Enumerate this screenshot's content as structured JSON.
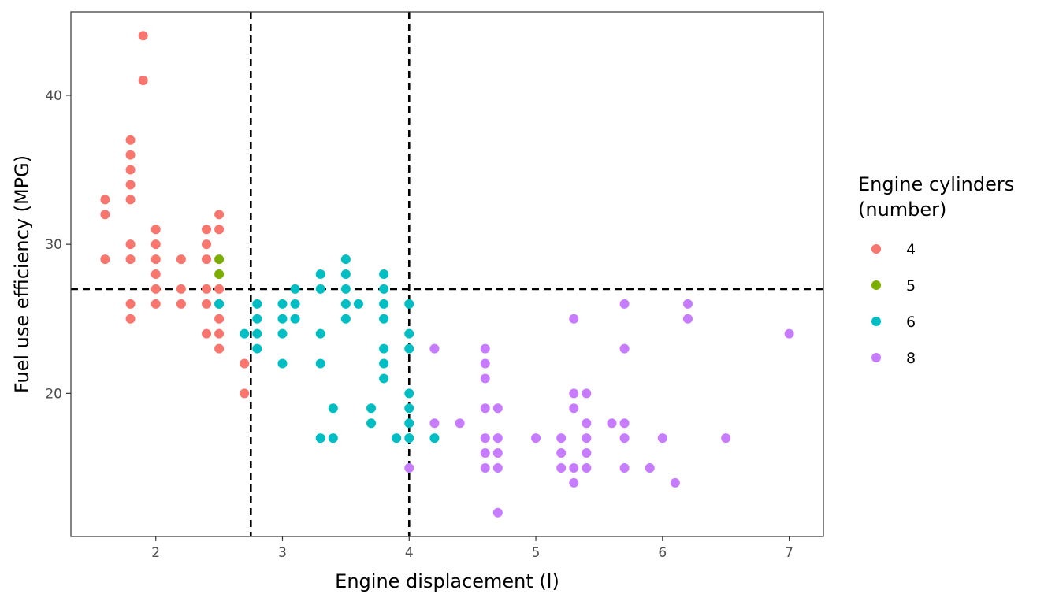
{
  "chart_data": {
    "type": "scatter",
    "xlabel": "Engine displacement (l)",
    "ylabel": "Fuel use efficiency (MPG)",
    "xlim": [
      1.33,
      7.27
    ],
    "ylim": [
      10.4,
      45.6
    ],
    "x_ticks": [
      2,
      3,
      4,
      5,
      6,
      7
    ],
    "x_tick_labels": [
      "2",
      "3",
      "4",
      "5",
      "6",
      "7"
    ],
    "y_ticks": [
      20,
      30,
      40
    ],
    "y_tick_labels": [
      "20",
      "30",
      "40"
    ],
    "grid": false,
    "reference_lines": {
      "vertical": [
        2.75,
        4.0
      ],
      "horizontal": [
        27
      ],
      "style": "dashed"
    },
    "legend": {
      "title_lines": [
        "Engine cylinders",
        "(number)"
      ],
      "position": "right"
    },
    "series": [
      {
        "name": "4",
        "color": "#F8766D",
        "points": [
          [
            1.6,
            33
          ],
          [
            1.6,
            32
          ],
          [
            1.6,
            29
          ],
          [
            1.8,
            37
          ],
          [
            1.8,
            36
          ],
          [
            1.8,
            35
          ],
          [
            1.8,
            34
          ],
          [
            1.8,
            33
          ],
          [
            1.8,
            30
          ],
          [
            1.8,
            29
          ],
          [
            1.8,
            26
          ],
          [
            1.8,
            25
          ],
          [
            1.9,
            44
          ],
          [
            1.9,
            41
          ],
          [
            2.0,
            31
          ],
          [
            2.0,
            30
          ],
          [
            2.0,
            29
          ],
          [
            2.0,
            28
          ],
          [
            2.0,
            27
          ],
          [
            2.0,
            26
          ],
          [
            2.2,
            29
          ],
          [
            2.2,
            27
          ],
          [
            2.2,
            26
          ],
          [
            2.4,
            31
          ],
          [
            2.4,
            30
          ],
          [
            2.4,
            29
          ],
          [
            2.4,
            27
          ],
          [
            2.4,
            26
          ],
          [
            2.4,
            24
          ],
          [
            2.5,
            32
          ],
          [
            2.5,
            31
          ],
          [
            2.5,
            27
          ],
          [
            2.5,
            26
          ],
          [
            2.5,
            25
          ],
          [
            2.5,
            24
          ],
          [
            2.5,
            23
          ],
          [
            2.7,
            22
          ],
          [
            2.7,
            20
          ]
        ]
      },
      {
        "name": "5",
        "color": "#7CAE00",
        "points": [
          [
            2.5,
            29
          ],
          [
            2.5,
            28
          ]
        ]
      },
      {
        "name": "6",
        "color": "#00BFC4",
        "points": [
          [
            2.5,
            26
          ],
          [
            2.7,
            24
          ],
          [
            2.8,
            26
          ],
          [
            2.8,
            25
          ],
          [
            2.8,
            24
          ],
          [
            2.8,
            23
          ],
          [
            3.0,
            26
          ],
          [
            3.0,
            25
          ],
          [
            3.0,
            24
          ],
          [
            3.0,
            22
          ],
          [
            3.1,
            27
          ],
          [
            3.1,
            26
          ],
          [
            3.1,
            25
          ],
          [
            3.3,
            28
          ],
          [
            3.3,
            27
          ],
          [
            3.3,
            24
          ],
          [
            3.3,
            22
          ],
          [
            3.3,
            17
          ],
          [
            3.4,
            19
          ],
          [
            3.4,
            17
          ],
          [
            3.5,
            29
          ],
          [
            3.5,
            28
          ],
          [
            3.5,
            27
          ],
          [
            3.5,
            26
          ],
          [
            3.5,
            25
          ],
          [
            3.6,
            26
          ],
          [
            3.7,
            19
          ],
          [
            3.7,
            18
          ],
          [
            3.8,
            28
          ],
          [
            3.8,
            27
          ],
          [
            3.8,
            26
          ],
          [
            3.8,
            25
          ],
          [
            3.8,
            23
          ],
          [
            3.8,
            22
          ],
          [
            3.8,
            21
          ],
          [
            3.9,
            17
          ],
          [
            4.0,
            26
          ],
          [
            4.0,
            24
          ],
          [
            4.0,
            23
          ],
          [
            4.0,
            20
          ],
          [
            4.0,
            19
          ],
          [
            4.0,
            18
          ],
          [
            4.0,
            17
          ],
          [
            4.2,
            17
          ]
        ]
      },
      {
        "name": "8",
        "color": "#C77CFF",
        "points": [
          [
            4.0,
            15
          ],
          [
            4.2,
            23
          ],
          [
            4.2,
            18
          ],
          [
            4.4,
            18
          ],
          [
            4.6,
            23
          ],
          [
            4.6,
            22
          ],
          [
            4.6,
            21
          ],
          [
            4.6,
            19
          ],
          [
            4.6,
            17
          ],
          [
            4.6,
            16
          ],
          [
            4.6,
            15
          ],
          [
            4.7,
            19
          ],
          [
            4.7,
            17
          ],
          [
            4.7,
            16
          ],
          [
            4.7,
            15
          ],
          [
            4.7,
            12
          ],
          [
            5.0,
            17
          ],
          [
            5.2,
            17
          ],
          [
            5.2,
            16
          ],
          [
            5.2,
            15
          ],
          [
            5.3,
            25
          ],
          [
            5.3,
            20
          ],
          [
            5.3,
            19
          ],
          [
            5.3,
            15
          ],
          [
            5.3,
            14
          ],
          [
            5.4,
            20
          ],
          [
            5.4,
            18
          ],
          [
            5.4,
            17
          ],
          [
            5.4,
            16
          ],
          [
            5.4,
            15
          ],
          [
            5.6,
            18
          ],
          [
            5.7,
            26
          ],
          [
            5.7,
            23
          ],
          [
            5.7,
            18
          ],
          [
            5.7,
            17
          ],
          [
            5.7,
            15
          ],
          [
            5.9,
            15
          ],
          [
            6.0,
            17
          ],
          [
            6.1,
            14
          ],
          [
            6.2,
            26
          ],
          [
            6.2,
            25
          ],
          [
            6.5,
            17
          ],
          [
            7.0,
            24
          ]
        ]
      }
    ]
  }
}
